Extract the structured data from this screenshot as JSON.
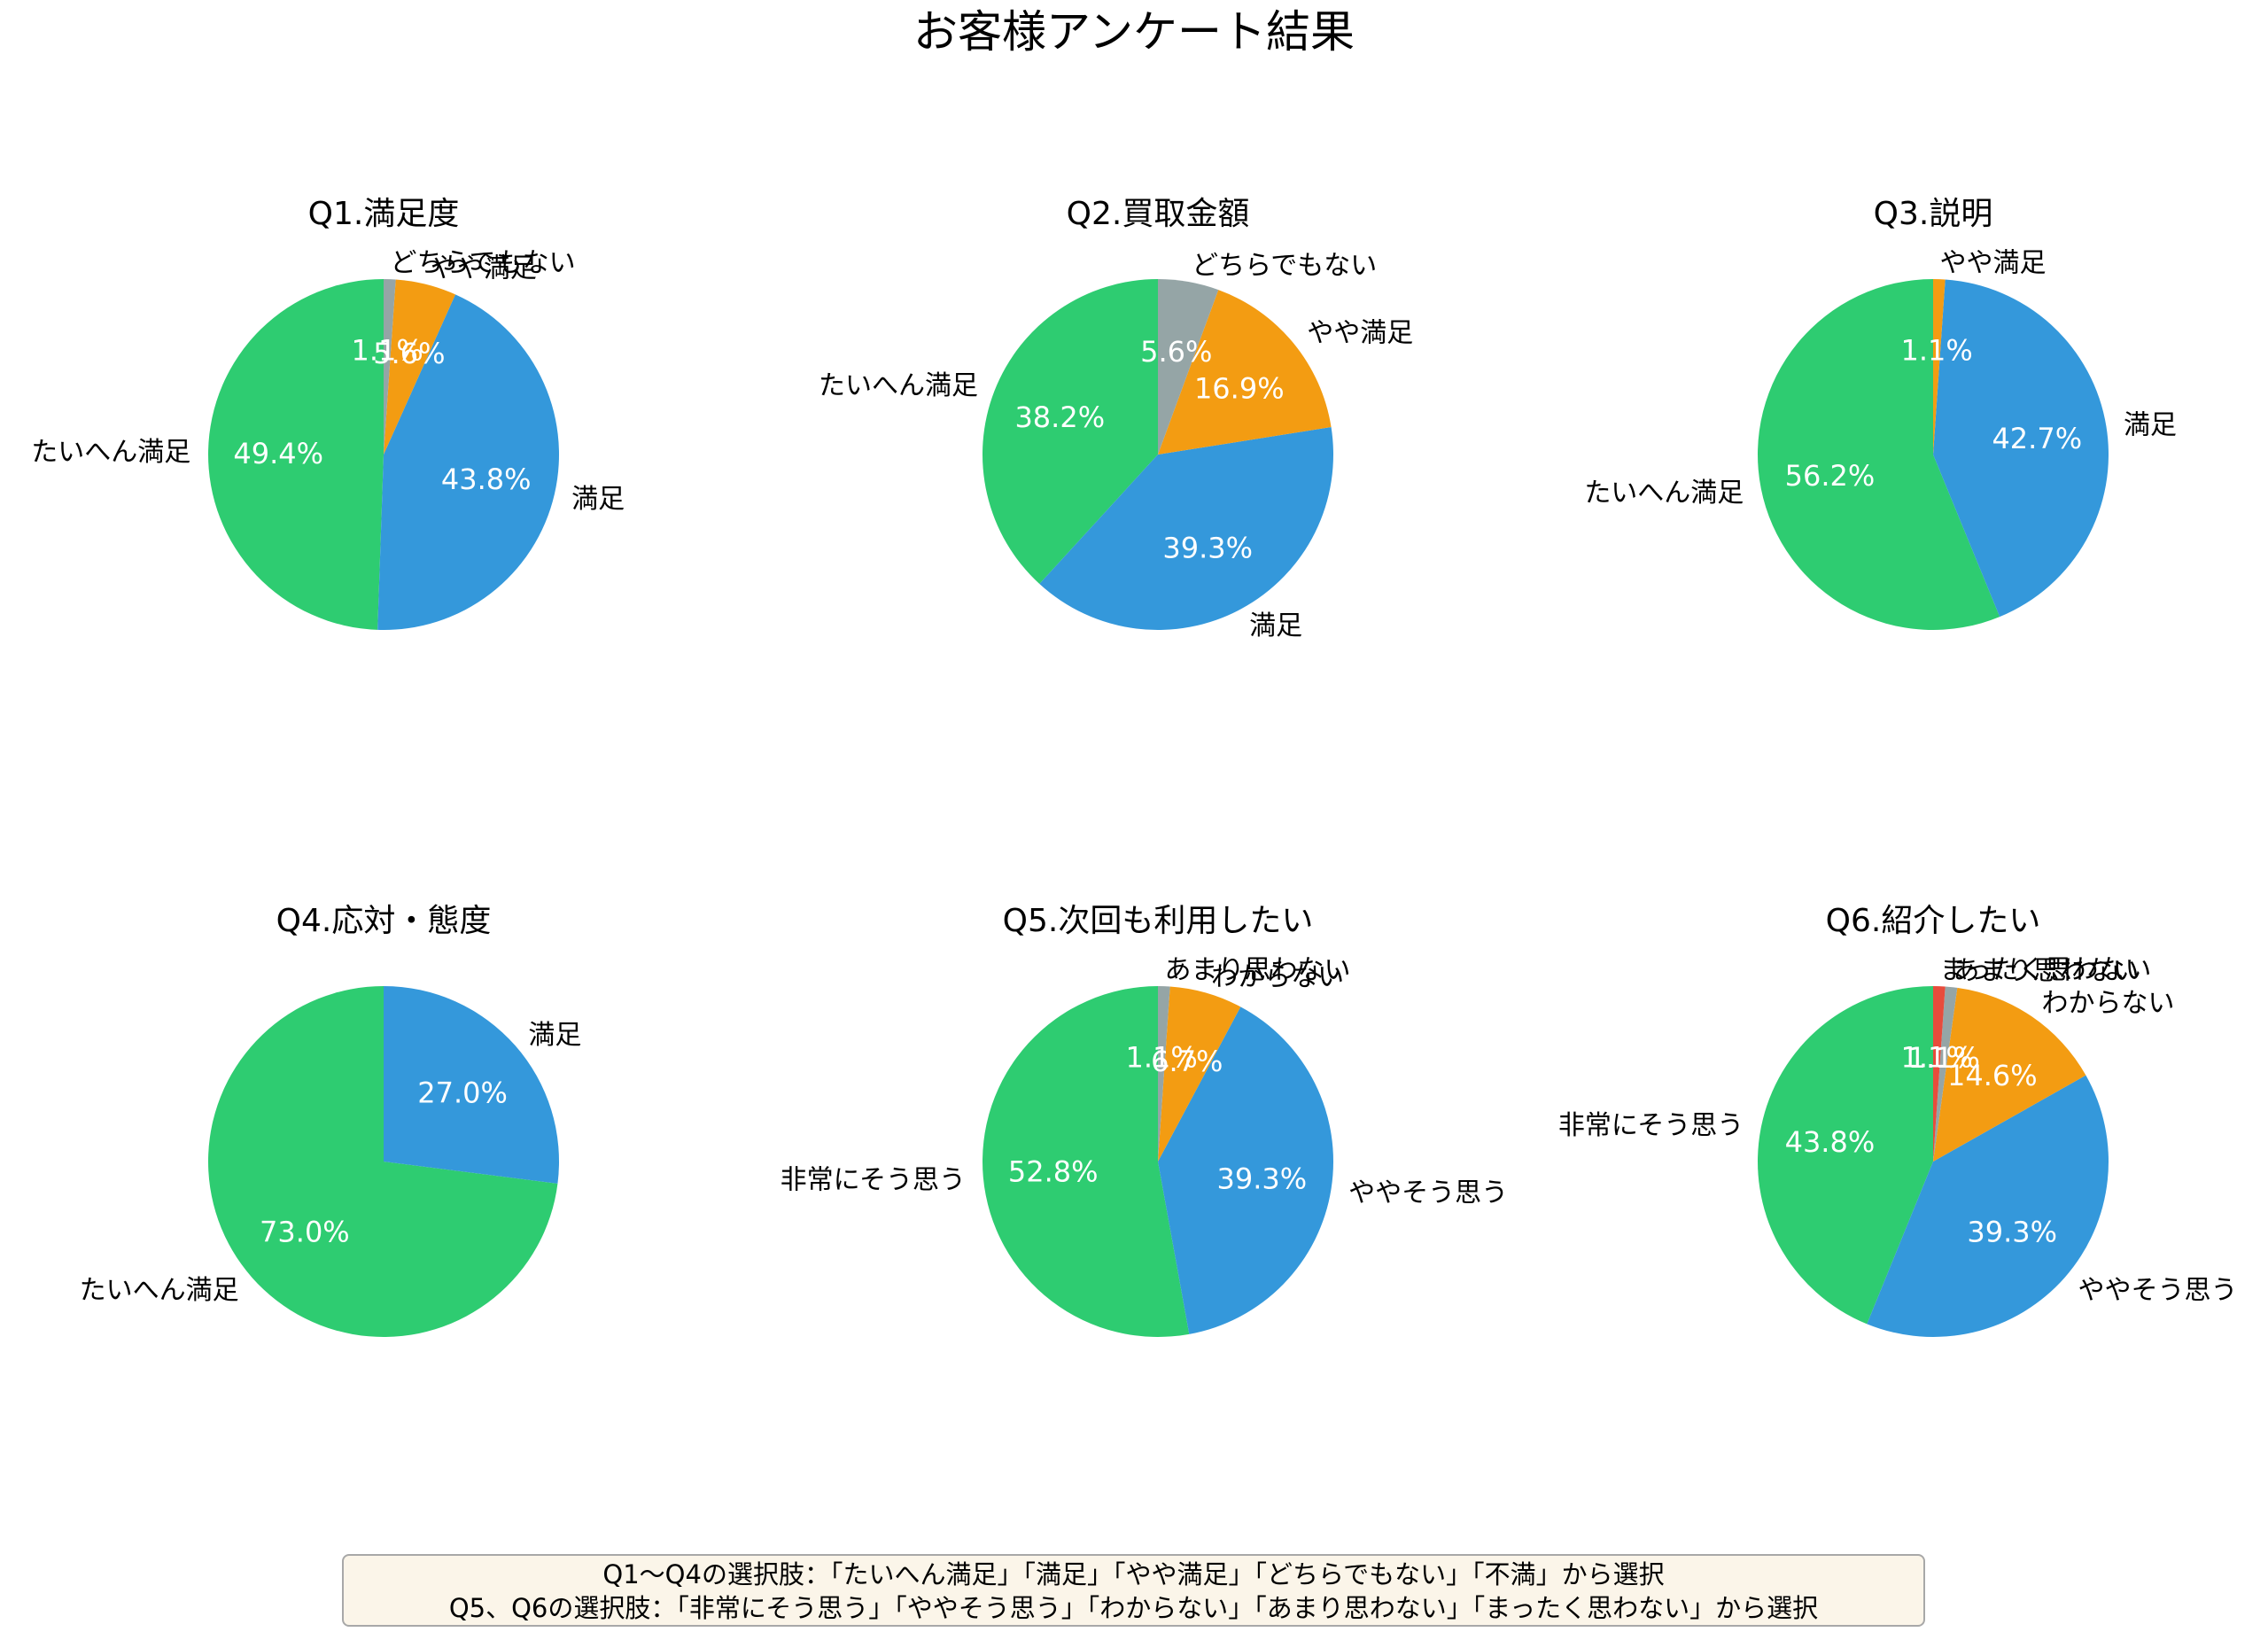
{
  "title": "お客様アンケート結果",
  "colors": {
    "green": "#2ecc71",
    "blue": "#3498db",
    "orange": "#f39c12",
    "gray": "#95a5a6",
    "red": "#e74c3c"
  },
  "note": {
    "line1": "Q1～Q4の選択肢：「たいへん満足」「満足」「やや満足」「どちらでもない」「不満」から選択",
    "line2": "Q5、Q6の選択肢：「非常にそう思う」「ややそう思う」「わからない」「あまり思わない」「まったく思わない」から選択"
  },
  "chart_data": [
    {
      "type": "pie",
      "title": "Q1.満足度",
      "categories": [
        "たいへん満足",
        "満足",
        "やや満足",
        "どちらでもない"
      ],
      "values": [
        49.4,
        43.8,
        5.6,
        1.1
      ],
      "labels": [
        "49.4%",
        "43.8%",
        "5.6%",
        "1.1%"
      ],
      "colors": [
        "#2ecc71",
        "#3498db",
        "#f39c12",
        "#95a5a6"
      ],
      "startangle": 90,
      "direction": "counterclockwise",
      "center": [
        433,
        513
      ],
      "radius": 198
    },
    {
      "type": "pie",
      "title": "Q2.買取金額",
      "categories": [
        "たいへん満足",
        "満足",
        "やや満足",
        "どちらでもない"
      ],
      "values": [
        38.2,
        39.3,
        16.9,
        5.6
      ],
      "labels": [
        "38.2%",
        "39.3%",
        "16.9%",
        "5.6%"
      ],
      "colors": [
        "#2ecc71",
        "#3498db",
        "#f39c12",
        "#95a5a6"
      ],
      "startangle": 90,
      "direction": "counterclockwise",
      "center": [
        1307,
        513
      ],
      "radius": 198
    },
    {
      "type": "pie",
      "title": "Q3.説明",
      "categories": [
        "たいへん満足",
        "満足",
        "やや満足"
      ],
      "values": [
        56.2,
        42.7,
        1.1
      ],
      "labels": [
        "56.2%",
        "42.7%",
        "1.1%"
      ],
      "colors": [
        "#2ecc71",
        "#3498db",
        "#f39c12"
      ],
      "startangle": 90,
      "direction": "counterclockwise",
      "center": [
        2182,
        513
      ],
      "radius": 198
    },
    {
      "type": "pie",
      "title": "Q4.応対・態度",
      "categories": [
        "たいへん満足",
        "満足"
      ],
      "values": [
        73.0,
        27.0
      ],
      "labels": [
        "73.0%",
        "27.0%"
      ],
      "colors": [
        "#2ecc71",
        "#3498db"
      ],
      "startangle": 90,
      "direction": "counterclockwise",
      "center": [
        433,
        1311
      ],
      "radius": 198
    },
    {
      "type": "pie",
      "title": "Q5.次回も利用したい",
      "categories": [
        "非常にそう思う",
        "ややそう思う",
        "わからない",
        "あまり思わない"
      ],
      "values": [
        52.8,
        39.3,
        6.7,
        1.1
      ],
      "labels": [
        "52.8%",
        "39.3%",
        "6.7%",
        "1.1%"
      ],
      "colors": [
        "#2ecc71",
        "#3498db",
        "#f39c12",
        "#95a5a6"
      ],
      "startangle": 90,
      "direction": "counterclockwise",
      "center": [
        1307,
        1311
      ],
      "radius": 198
    },
    {
      "type": "pie",
      "title": "Q6.紹介したい",
      "categories": [
        "非常にそう思う",
        "ややそう思う",
        "わからない",
        "あまり思わない",
        "まったく思わない"
      ],
      "values": [
        43.8,
        39.3,
        14.6,
        1.1,
        1.1
      ],
      "labels": [
        "43.8%",
        "39.3%",
        "14.6%",
        "1.1%",
        "1.1%"
      ],
      "colors": [
        "#2ecc71",
        "#3498db",
        "#f39c12",
        "#95a5a6",
        "#e74c3c"
      ],
      "startangle": 90,
      "direction": "counterclockwise",
      "center": [
        2182,
        1311
      ],
      "radius": 198
    }
  ]
}
